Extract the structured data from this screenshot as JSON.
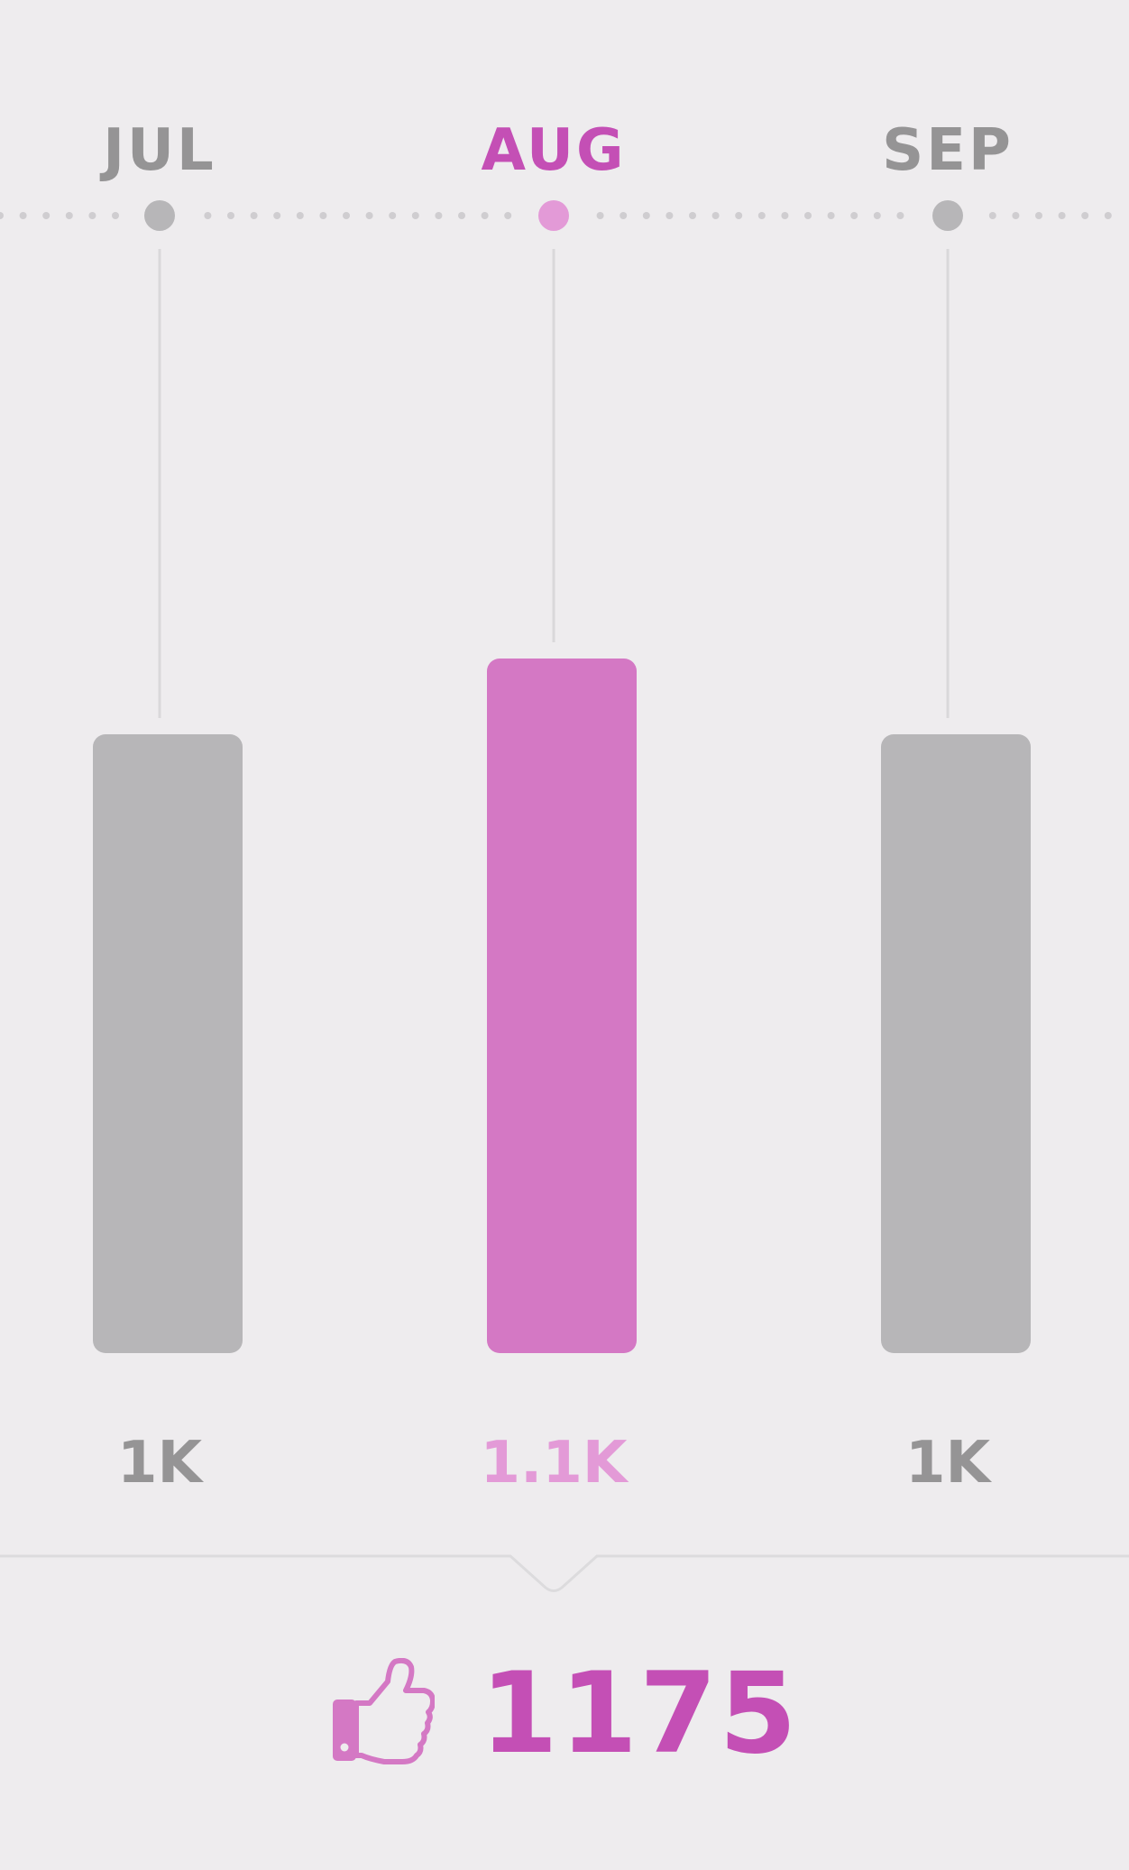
{
  "colors": {
    "background": "#eeecee",
    "accent": "#d478c4",
    "accent_text": "#c44fb5",
    "accent_light": "#e39ad7",
    "inactive": "#b7b6b8",
    "inactive_text": "#959495",
    "guide_line": "#d9d8da",
    "dot": "#cfcdd0",
    "divider": "#dcdbdd"
  },
  "chart_data": {
    "type": "bar",
    "categories": [
      "JUL",
      "AUG",
      "SEP"
    ],
    "values": [
      1000,
      1100,
      1000
    ],
    "value_labels": [
      "1K",
      "1.1K",
      "1K"
    ],
    "selected_index": 1,
    "grid": false,
    "legend": "none"
  },
  "summary": {
    "icon": "thumbs-up-icon",
    "count": "1175"
  }
}
